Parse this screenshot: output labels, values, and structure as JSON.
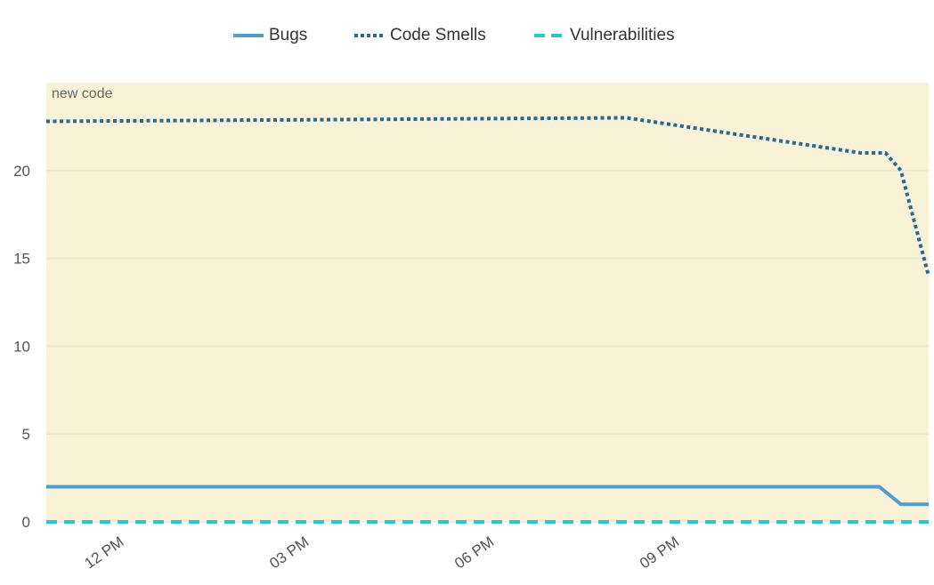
{
  "chart_data": {
    "type": "line",
    "title": "",
    "xlabel": "",
    "ylabel": "",
    "annotation": "new code",
    "x_tick_labels": [
      "12 PM",
      "03 PM",
      "06 PM",
      "09 PM"
    ],
    "x_tick_hours": [
      12,
      15,
      18,
      21
    ],
    "x_range_hours": [
      10.9,
      25.2
    ],
    "ylim": [
      0,
      25
    ],
    "y_ticks": [
      0,
      5,
      10,
      15,
      20
    ],
    "grid": true,
    "legend": "top-center",
    "new_code_period_color": "#f9f2d6",
    "series": [
      {
        "name": "Bugs",
        "color": "#4b9fd5",
        "style": "solid",
        "x": [
          10.9,
          24.4,
          24.75,
          25.2
        ],
        "values": [
          2,
          2,
          1,
          1
        ]
      },
      {
        "name": "Code Smells",
        "color": "#236a97",
        "style": "dotted",
        "x": [
          10.9,
          20.3,
          24.1,
          24.5,
          24.75,
          25.2
        ],
        "values": [
          22.8,
          23,
          21,
          21,
          20,
          14
        ]
      },
      {
        "name": "Vulnerabilities",
        "color": "#24c6e0",
        "style": "dashed",
        "x": [
          10.9,
          25.2
        ],
        "values": [
          0,
          0
        ]
      }
    ]
  }
}
